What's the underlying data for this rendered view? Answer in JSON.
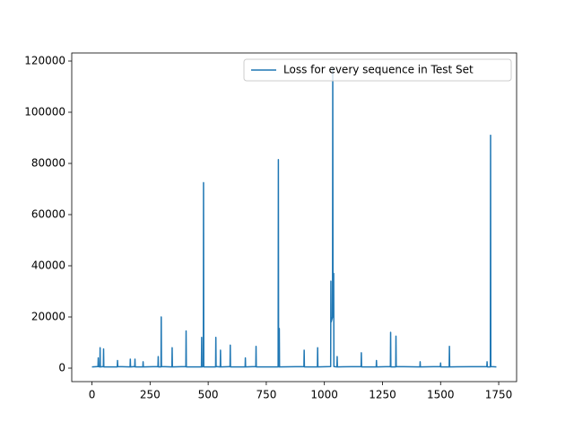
{
  "chart_data": {
    "type": "line",
    "x": [
      0,
      26,
      27,
      28,
      34,
      35,
      36,
      49,
      50,
      51,
      109,
      110,
      111,
      164,
      165,
      166,
      184,
      185,
      186,
      219,
      220,
      221,
      284,
      285,
      286,
      297,
      298,
      299,
      344,
      345,
      346,
      404,
      405,
      406,
      471,
      472,
      473,
      479,
      480,
      481,
      532,
      533,
      534,
      552,
      553,
      554,
      594,
      595,
      596,
      659,
      660,
      661,
      705,
      706,
      707,
      801,
      802,
      803,
      805,
      806,
      807,
      912,
      913,
      914,
      970,
      971,
      972,
      1027,
      1028,
      1029,
      1035,
      1036,
      1037,
      1039,
      1040,
      1041,
      1054,
      1055,
      1056,
      1158,
      1159,
      1160,
      1223,
      1224,
      1225,
      1284,
      1285,
      1286,
      1307,
      1308,
      1309,
      1411,
      1412,
      1413,
      1499,
      1500,
      1501,
      1537,
      1538,
      1539,
      1699,
      1700,
      1701,
      1714,
      1715,
      1716,
      1740
    ],
    "series": [
      {
        "name": "Loss for every sequence in Test Set",
        "color": "#1f77b4",
        "values": [
          500,
          600,
          4000,
          600,
          500,
          8000,
          500,
          600,
          7500,
          500,
          500,
          3000,
          600,
          500,
          3500,
          500,
          600,
          3500,
          500,
          500,
          2500,
          500,
          600,
          4500,
          500,
          500,
          20000,
          600,
          500,
          8000,
          500,
          600,
          14500,
          500,
          500,
          12000,
          500,
          600,
          72500,
          500,
          500,
          12000,
          600,
          500,
          7000,
          500,
          600,
          9000,
          500,
          500,
          4000,
          500,
          600,
          8500,
          500,
          500,
          81500,
          600,
          500,
          15500,
          500,
          600,
          7000,
          500,
          500,
          8000,
          500,
          600,
          34000,
          18000,
          20000,
          117000,
          25000,
          20000,
          37000,
          600,
          500,
          4500,
          500,
          600,
          6000,
          500,
          500,
          3000,
          500,
          600,
          14000,
          500,
          500,
          12500,
          600,
          500,
          2500,
          500,
          600,
          2000,
          500,
          500,
          8500,
          500,
          600,
          2500,
          500,
          500,
          91000,
          600,
          500
        ]
      }
    ],
    "xlim": [
      -87,
      1827
    ],
    "xticks": [
      0,
      250,
      500,
      750,
      1000,
      1250,
      1500,
      1750
    ],
    "ylim": [
      -5263,
      123158
    ],
    "yticks": [
      0,
      20000,
      40000,
      60000,
      80000,
      100000,
      120000
    ],
    "legend": "upper right"
  }
}
